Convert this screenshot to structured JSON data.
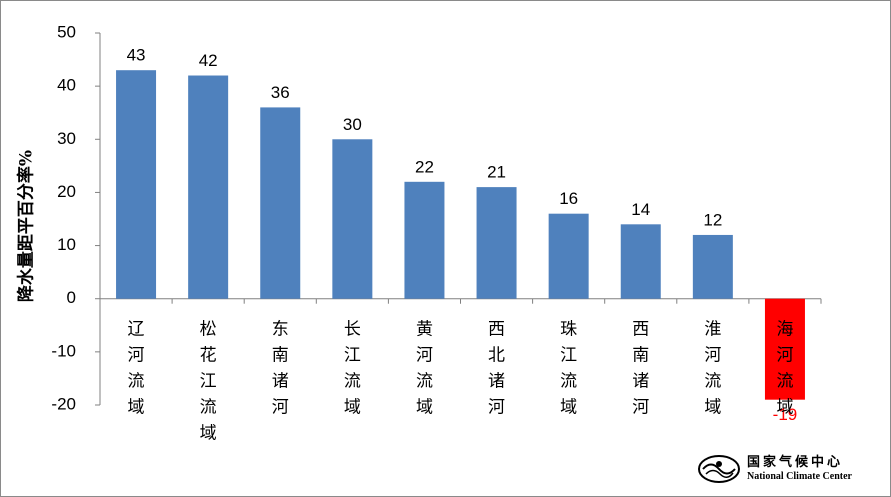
{
  "chart_data": {
    "type": "bar",
    "title": "",
    "xlabel": "",
    "ylabel": "降水量距平百分率%",
    "ylim": [
      -20,
      50
    ],
    "yticks": [
      50,
      40,
      30,
      20,
      10,
      0,
      -10,
      -20
    ],
    "grid": false,
    "legend": "none",
    "categories": [
      "辽河流域",
      "松花江流域",
      "东南诸河",
      "长江流域",
      "黄河流域",
      "西北诸河",
      "珠江流域",
      "西南诸河",
      "淮河流域",
      "海河流域"
    ],
    "values": [
      43,
      42,
      36,
      30,
      22,
      21,
      16,
      14,
      12,
      -19
    ],
    "bar_color": "#4F81BD",
    "negative_bar_color": "#FF0000",
    "negative_label_color": "#FF0000"
  },
  "logo": {
    "name_zh": "国家气候中心",
    "name_en": "National Climate Center"
  }
}
